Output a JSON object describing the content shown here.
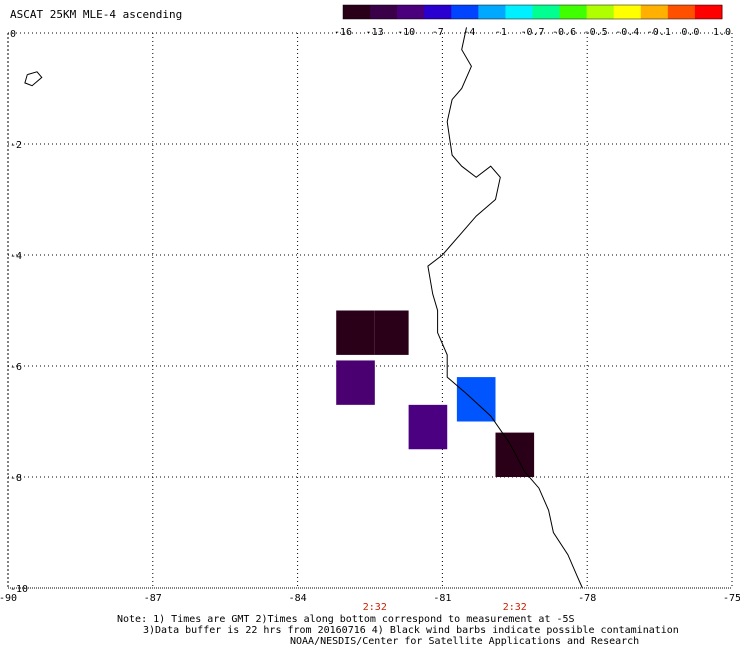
{
  "title": "ASCAT 25KM MLE-4 ascending",
  "colorbar": {
    "labels": [
      "-16",
      "-13",
      "-10",
      "-7",
      "-4",
      "-1",
      "-0.7",
      "-0.6",
      "-0.5",
      "-0.4",
      "-0.1",
      "0.0",
      "1.0"
    ],
    "colors": [
      "#2a0018",
      "#3a0048",
      "#4a007c",
      "#2a00d0",
      "#0044ff",
      "#00a8ff",
      "#00f0ff",
      "#00ff90",
      "#40ff00",
      "#b0ff00",
      "#ffff00",
      "#ffb000",
      "#ff5000",
      "#ff0000"
    ]
  },
  "map_data": {
    "lon_range": [
      -90,
      -75
    ],
    "lat_range": [
      -10,
      0
    ],
    "x_ticks": [
      "-90",
      "-87",
      "-84",
      "-81",
      "-78",
      "-75"
    ],
    "y_ticks": [
      "0",
      "-2",
      "-4",
      "-6",
      "-8",
      "-10"
    ],
    "time_labels": [
      {
        "lon": -82.4,
        "text": "2:32"
      },
      {
        "lon": -79.5,
        "text": "2:32"
      }
    ],
    "cells": [
      {
        "lon": [
          -83.2,
          -82.4
        ],
        "lat": [
          -5.0,
          -5.8
        ],
        "color": "#2a0018"
      },
      {
        "lon": [
          -82.4,
          -81.7
        ],
        "lat": [
          -5.0,
          -5.8
        ],
        "color": "#2a0018"
      },
      {
        "lon": [
          -83.2,
          -82.4
        ],
        "lat": [
          -5.9,
          -6.7
        ],
        "color": "#4a0070"
      },
      {
        "lon": [
          -81.7,
          -80.9
        ],
        "lat": [
          -6.7,
          -7.5
        ],
        "color": "#4a0080"
      },
      {
        "lon": [
          -80.7,
          -79.9
        ],
        "lat": [
          -6.2,
          -7.0
        ],
        "color": "#0055ff"
      },
      {
        "lon": [
          -79.9,
          -79.1
        ],
        "lat": [
          -7.2,
          -8.0
        ],
        "color": "#2a0018"
      }
    ],
    "coastline": [
      [
        -80.5,
        0.1
      ],
      [
        -80.6,
        -0.3
      ],
      [
        -80.4,
        -0.6
      ],
      [
        -80.6,
        -1.0
      ],
      [
        -80.8,
        -1.2
      ],
      [
        -80.9,
        -1.6
      ],
      [
        -80.8,
        -2.2
      ],
      [
        -80.6,
        -2.4
      ],
      [
        -80.3,
        -2.6
      ],
      [
        -80.0,
        -2.4
      ],
      [
        -79.8,
        -2.6
      ],
      [
        -79.9,
        -3.0
      ],
      [
        -80.3,
        -3.3
      ],
      [
        -80.6,
        -3.6
      ],
      [
        -81.0,
        -4.0
      ],
      [
        -81.3,
        -4.2
      ],
      [
        -81.2,
        -4.7
      ],
      [
        -81.1,
        -5.0
      ],
      [
        -81.1,
        -5.4
      ],
      [
        -80.9,
        -5.8
      ],
      [
        -80.9,
        -6.2
      ],
      [
        -80.5,
        -6.5
      ],
      [
        -80.0,
        -6.9
      ],
      [
        -79.6,
        -7.4
      ],
      [
        -79.3,
        -7.9
      ],
      [
        -79.0,
        -8.2
      ],
      [
        -78.8,
        -8.6
      ],
      [
        -78.7,
        -9.0
      ],
      [
        -78.4,
        -9.4
      ],
      [
        -78.2,
        -9.8
      ],
      [
        -78.1,
        -10.0
      ]
    ],
    "island": [
      [
        -89.6,
        -0.75
      ],
      [
        -89.4,
        -0.7
      ],
      [
        -89.3,
        -0.8
      ],
      [
        -89.5,
        -0.95
      ],
      [
        -89.65,
        -0.9
      ],
      [
        -89.6,
        -0.75
      ]
    ]
  },
  "notes": [
    "Note: 1) Times are GMT 2)Times along bottom correspond to measurement at -5S",
    "3)Data buffer is 22 hrs from 20160716 4) Black wind barbs indicate possible contamination",
    "NOAA/NESDIS/Center for Satellite Applications and Research"
  ]
}
